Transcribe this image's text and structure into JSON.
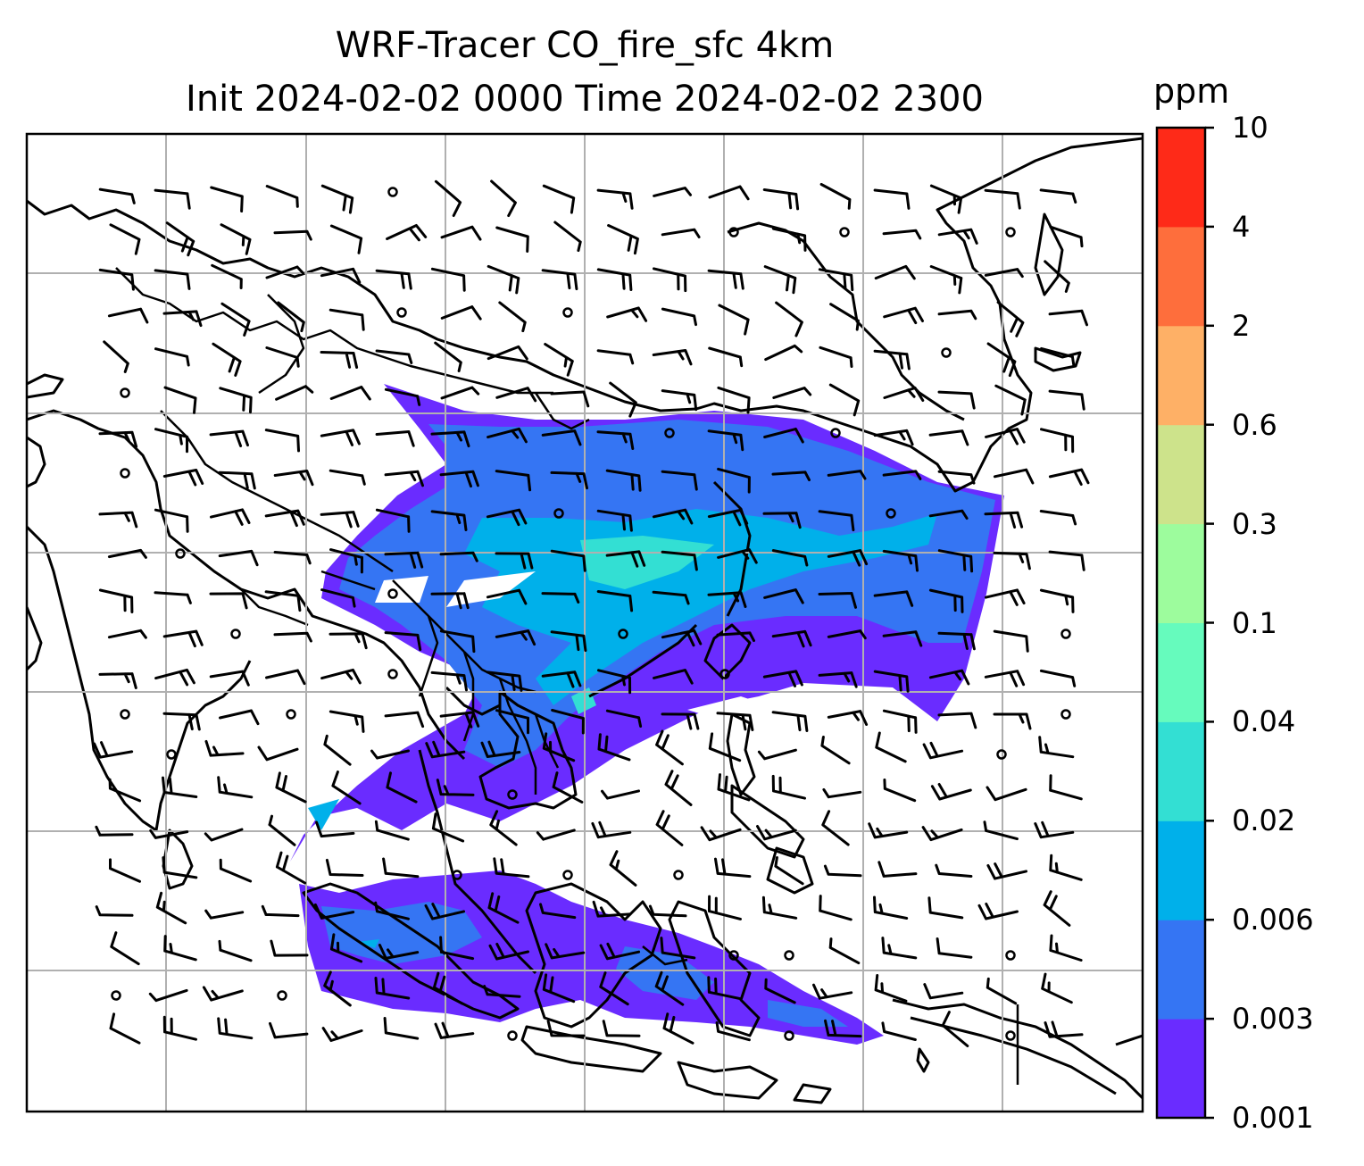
{
  "title": {
    "line1": "WRF-Tracer CO_fire_sfc 4km",
    "line2": "Init 2024-02-02 0000 Time 2024-02-02 2300"
  },
  "colorbar": {
    "unit": "ppm",
    "levels": [
      "0.001",
      "0.003",
      "0.006",
      "0.02",
      "0.04",
      "0.1",
      "0.3",
      "0.6",
      "2",
      "4",
      "10"
    ],
    "colors": [
      "#6a2cff",
      "#3575f3",
      "#00b0ea",
      "#33dfd3",
      "#66fbbd",
      "#9dfc9d",
      "#cde38b",
      "#feb066",
      "#fe6e3c",
      "#fe2a18"
    ]
  },
  "map": {
    "gridlines": true,
    "features": [
      "coastlines",
      "country-borders",
      "wind-barbs"
    ]
  }
}
